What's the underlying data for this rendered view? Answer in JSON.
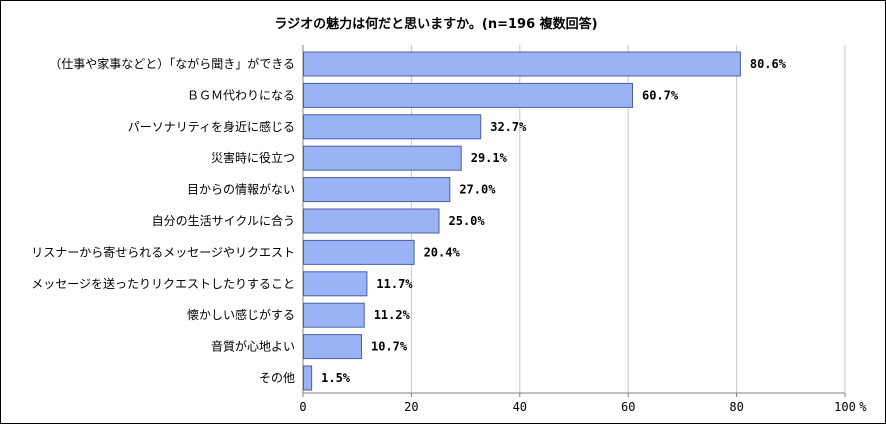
{
  "chart_data": {
    "type": "bar",
    "orientation": "horizontal",
    "title": "ラジオの魅力は何だと思いますか。(n=196 複数回答)",
    "categories": [
      "（仕事や家事などと）「ながら聞き」ができる",
      "ＢＧＭ代わりになる",
      "パーソナリティを身近に感じる",
      "災害時に役立つ",
      "目からの情報がない",
      "自分の生活サイクルに合う",
      "リスナーから寄せられるメッセージやリクエスト",
      "メッセージを送ったりリクエストしたりすること",
      "懐かしい感じがする",
      "音質が心地よい",
      "その他"
    ],
    "values": [
      80.6,
      60.7,
      32.7,
      29.1,
      27.0,
      25.0,
      20.4,
      11.7,
      11.2,
      10.7,
      1.5
    ],
    "value_labels": [
      "80.6%",
      "60.7%",
      "32.7%",
      "29.1%",
      "27.0%",
      "25.0%",
      "20.4%",
      "11.7%",
      "11.2%",
      "10.7%",
      "1.5%"
    ],
    "xlim": [
      0,
      100
    ],
    "xticks": [
      0,
      20,
      40,
      60,
      80,
      100
    ],
    "xtick_labels": [
      "0",
      "20",
      "40",
      "60",
      "80",
      "100"
    ],
    "x_unit": "%",
    "grid": "vertical",
    "legend": "none",
    "colors": {
      "bar_fill": "#99b3f5",
      "bar_stroke": "#4a5fa8",
      "grid": "#c8c8c8",
      "axis": "#808080"
    }
  }
}
